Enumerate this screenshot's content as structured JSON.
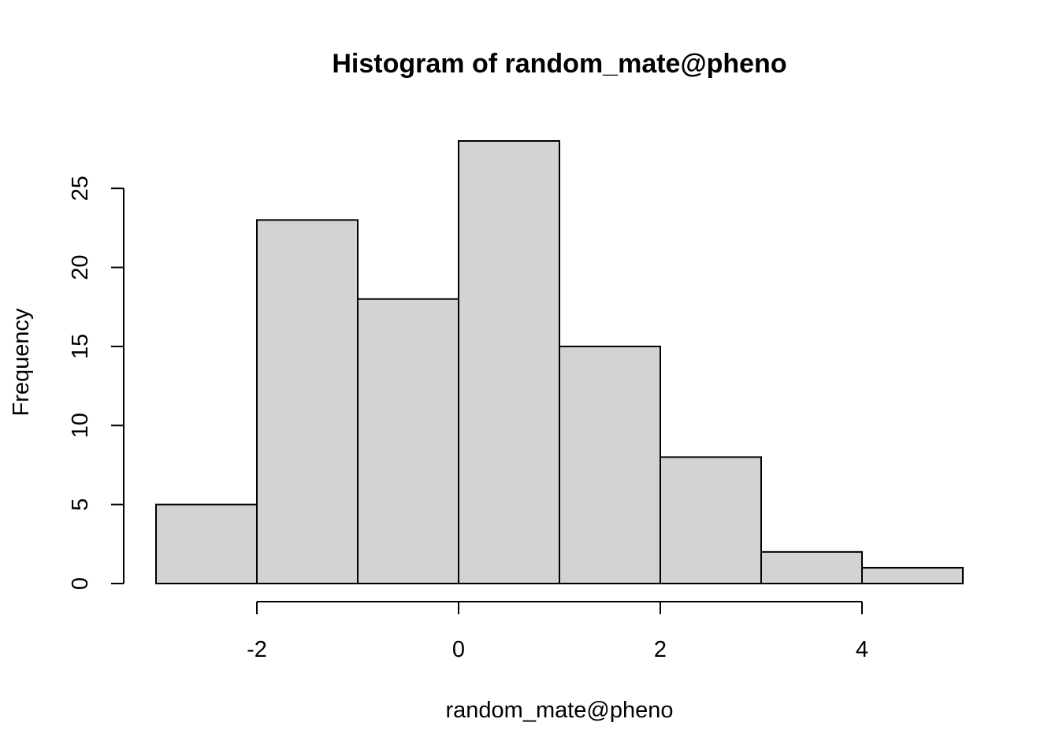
{
  "chart_data": {
    "type": "bar",
    "subtype": "histogram",
    "title": "Histogram of random_mate@pheno",
    "xlabel": "random_mate@pheno",
    "ylabel": "Frequency",
    "bins": [
      {
        "from": -3,
        "to": -2,
        "count": 5
      },
      {
        "from": -2,
        "to": -1,
        "count": 23
      },
      {
        "from": -1,
        "to": 0,
        "count": 18
      },
      {
        "from": 0,
        "to": 1,
        "count": 28
      },
      {
        "from": 1,
        "to": 2,
        "count": 15
      },
      {
        "from": 2,
        "to": 3,
        "count": 8
      },
      {
        "from": 3,
        "to": 4,
        "count": 2
      },
      {
        "from": 4,
        "to": 5,
        "count": 1
      }
    ],
    "xticks": [
      -2,
      0,
      2,
      4
    ],
    "yticks": [
      0,
      5,
      10,
      15,
      20,
      25
    ],
    "xlim": [
      -3,
      5
    ],
    "ylim": [
      0,
      28
    ],
    "bar_color": "#d3d3d3",
    "grid": false,
    "legend": "none"
  }
}
